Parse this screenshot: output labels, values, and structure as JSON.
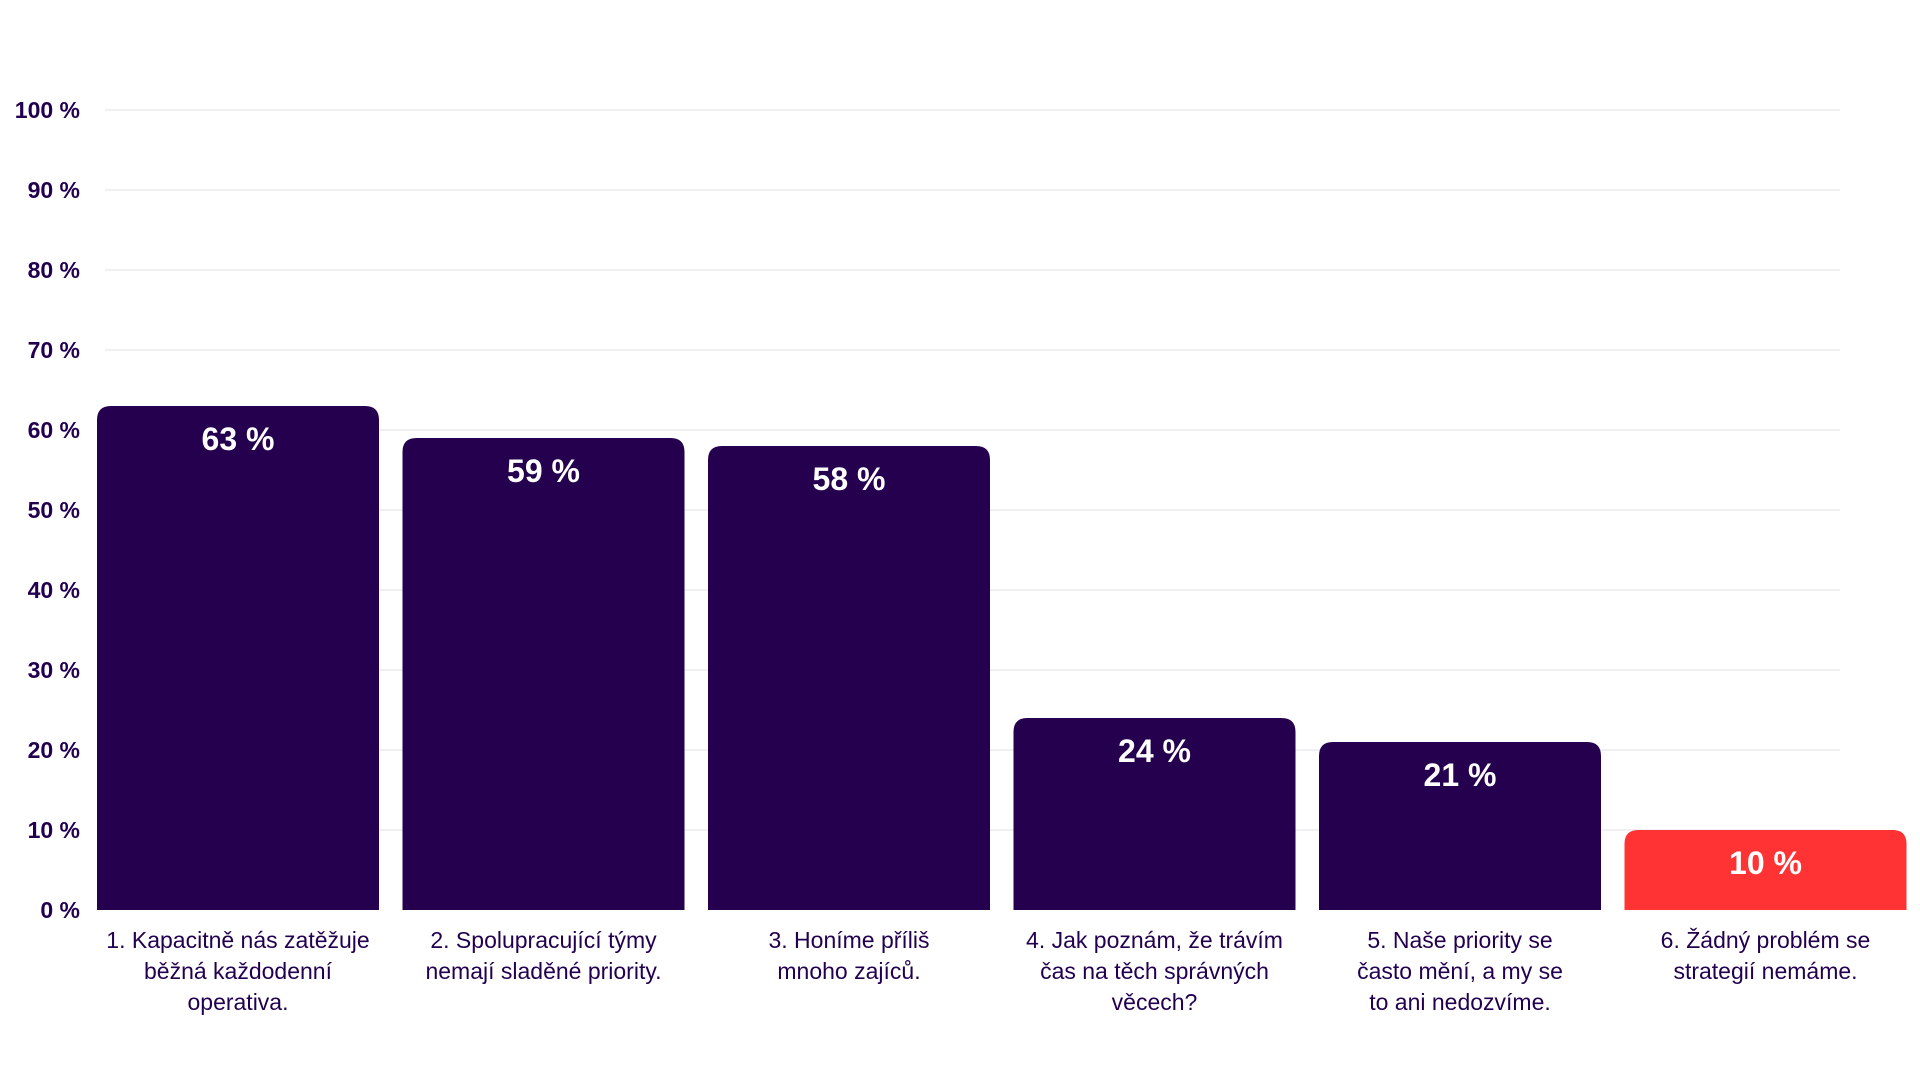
{
  "chart_data": {
    "type": "bar",
    "title": "",
    "xlabel": "",
    "ylabel": "",
    "ylim": [
      0,
      100
    ],
    "yticks": [
      0,
      10,
      20,
      30,
      40,
      50,
      60,
      70,
      80,
      90,
      100
    ],
    "ytick_suffix": " %",
    "grid": true,
    "categories": [
      [
        "1. Kapacitně nás zatěžuje",
        "běžná každodenní",
        "operativa."
      ],
      [
        "2. Spolupracující týmy",
        "nemají sladěné priority."
      ],
      [
        "3. Honíme příliš",
        "mnoho zajíců."
      ],
      [
        "4. Jak poznám, že trávím",
        "čas na těch správných",
        "věcech?"
      ],
      [
        "5. Naše priority se",
        "často mění, a my se",
        "to ani nedozvíme."
      ],
      [
        "6. Žádný problém se",
        "strategií nemáme."
      ]
    ],
    "values": [
      63,
      59,
      58,
      24,
      21,
      10
    ],
    "value_labels": [
      "63 %",
      "59 %",
      "58 %",
      "24 %",
      "21 %",
      "10 %"
    ],
    "colors": [
      "#24004f",
      "#24004f",
      "#24004f",
      "#24004f",
      "#24004f",
      "#ff3333"
    ]
  }
}
